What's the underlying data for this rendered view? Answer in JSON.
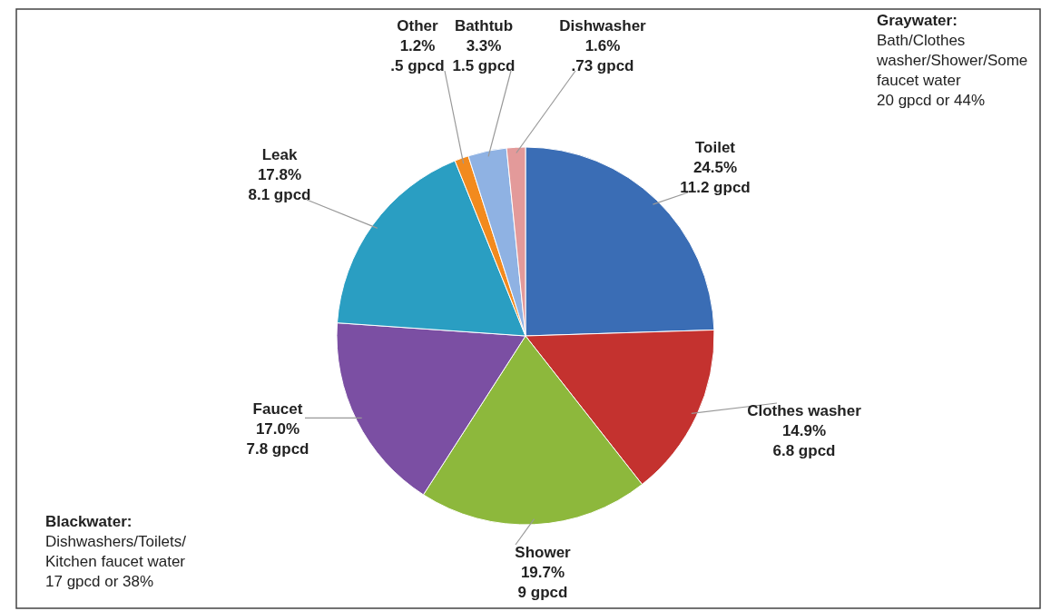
{
  "chart_data": {
    "type": "pie",
    "categories": [
      "Toilet",
      "Clothes washer",
      "Shower",
      "Faucet",
      "Leak",
      "Other",
      "Bathtub",
      "Dishwasher"
    ],
    "values": [
      24.5,
      14.9,
      19.7,
      17.0,
      17.8,
      1.2,
      3.3,
      1.6
    ],
    "colors": [
      "#3a6db5",
      "#c4322f",
      "#8db83c",
      "#7b4fa3",
      "#2a9ec2",
      "#f28a1e",
      "#8fb2e3",
      "#e39a9a"
    ],
    "value_labels": [
      "24.5%\n11.2 gpcd",
      "14.9%\n6.8 gpcd",
      "19.7%\n9 gpcd",
      "17.0%\n7.8 gpcd",
      "17.8%\n8.1 gpcd",
      "1.2%\n.5 gpcd",
      "3.3%\n1.5 gpcd",
      "1.6%\n.73 gpcd"
    ],
    "annotations": [
      "Graywater:\nBath/Clothes\nwasher/Shower/Some\nfaucet water\n20 gpcd or 44%",
      "Blackwater:\nDishwashers/Toilets/\nKitchen faucet water\n17 gpcd or 38%"
    ]
  }
}
